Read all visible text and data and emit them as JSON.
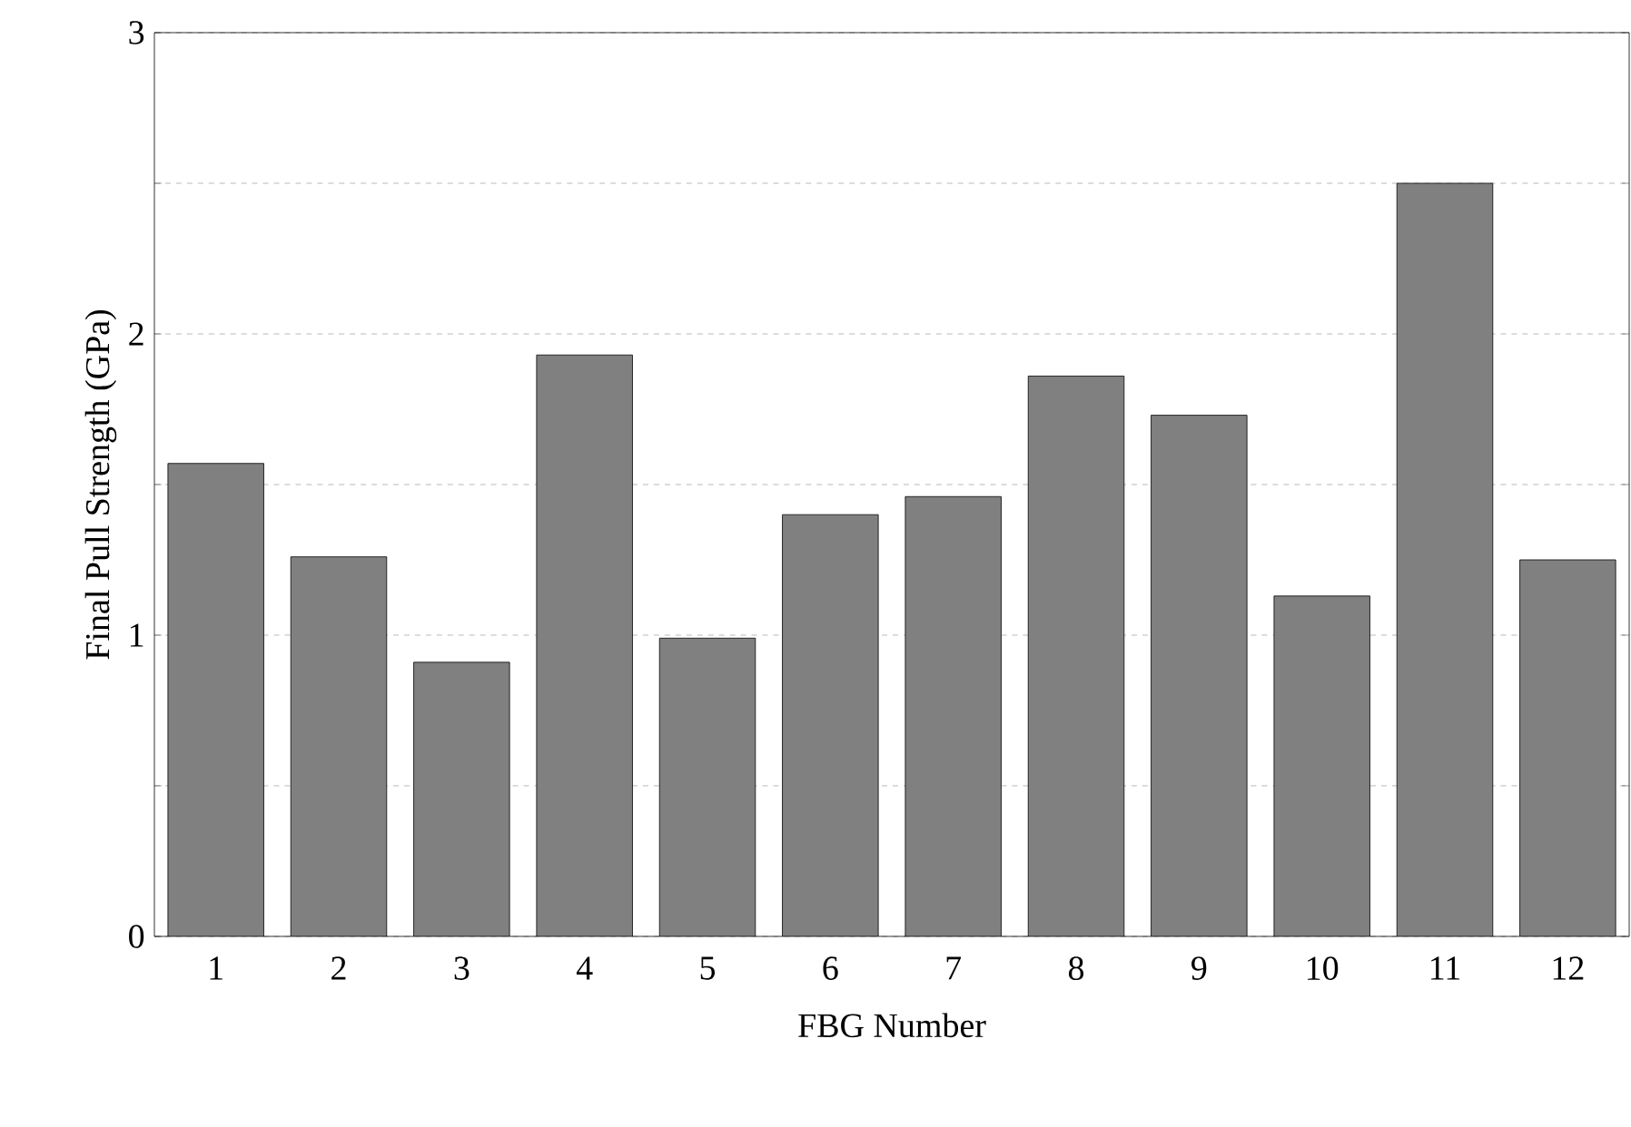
{
  "chart_data": {
    "type": "bar",
    "xlabel": "FBG Number",
    "ylabel": "Final Pull Strength (GPa)",
    "categories": [
      "1",
      "2",
      "3",
      "4",
      "5",
      "6",
      "7",
      "8",
      "9",
      "10",
      "11",
      "12"
    ],
    "values": [
      1.57,
      1.26,
      0.91,
      1.93,
      0.99,
      1.4,
      1.46,
      1.86,
      1.73,
      1.13,
      2.5,
      1.25
    ],
    "color": "#808080",
    "ylim": [
      0,
      3
    ],
    "yticks": [
      0,
      {
        "value": 0.5,
        "label": null
      },
      1,
      {
        "value": 1.5,
        "label": null
      },
      2,
      {
        "value": 2.5,
        "label": null
      },
      3
    ],
    "grid": "y"
  }
}
